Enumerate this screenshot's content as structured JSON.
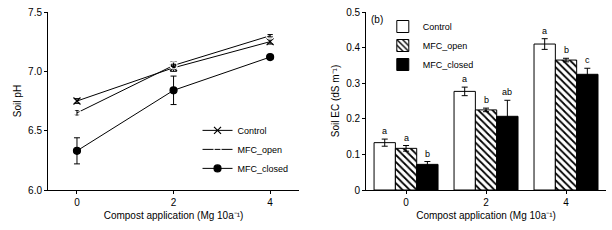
{
  "chart_data": [
    {
      "type": "line",
      "x_label": "Compost application (Mg 10a⁻¹)",
      "y_label": "Soil pH",
      "categories": [
        "0",
        "2",
        "4"
      ],
      "ylim": [
        6.0,
        7.5
      ],
      "yticks": [
        {
          "value": 6.0,
          "label": "6.0"
        },
        6.5,
        {
          "value": 7.0,
          "label": "7.0"
        },
        7.5
      ],
      "legend": "lower right",
      "series": [
        {
          "name": "Control",
          "color": "#000000",
          "marker": "x",
          "values": [
            6.75,
            7.03,
            7.25
          ],
          "errors": [
            0.02,
            0.03,
            0.02
          ]
        },
        {
          "name": "MFC_open",
          "color": "#000000",
          "marker": "circle-open",
          "values": [
            6.65,
            7.05,
            7.3
          ],
          "errors": [
            0.02,
            0.03,
            0.01
          ]
        },
        {
          "name": "MFC_closed",
          "color": "#000000",
          "marker": "circle",
          "values": [
            6.33,
            6.84,
            7.12
          ],
          "errors": [
            0.11,
            0.12,
            0.02
          ]
        }
      ]
    },
    {
      "type": "bar",
      "label": "(b)",
      "x_label": "Compost application (Mg 10a⁻¹)",
      "y_label": "Soil EC (dS m⁻¹)",
      "categories": [
        "0",
        "2",
        "4"
      ],
      "ylim": [
        0,
        0.5
      ],
      "yticks": [
        0,
        0.1,
        0.2,
        0.3,
        0.4,
        0.5
      ],
      "legend": "upper left",
      "series": [
        {
          "name": "Control",
          "color": "#ffffff",
          "marker": "solid",
          "values": [
            0.133,
            0.277,
            0.41
          ],
          "errors": [
            0.01,
            0.012,
            0.015
          ],
          "annotations": [
            "a",
            "a",
            "a"
          ]
        },
        {
          "name": "MFC_open",
          "color": "#000000",
          "marker": "hatched",
          "values": [
            0.117,
            0.225,
            0.365
          ],
          "errors": [
            0.008,
            0.005,
            0.005
          ],
          "annotations": [
            "a",
            "b",
            "b"
          ]
        },
        {
          "name": "MFC_closed",
          "color": "#000000",
          "marker": "solid",
          "values": [
            0.072,
            0.207,
            0.325
          ],
          "errors": [
            0.008,
            0.045,
            0.017
          ],
          "annotations": [
            "b",
            "ab",
            "c"
          ]
        }
      ]
    }
  ]
}
